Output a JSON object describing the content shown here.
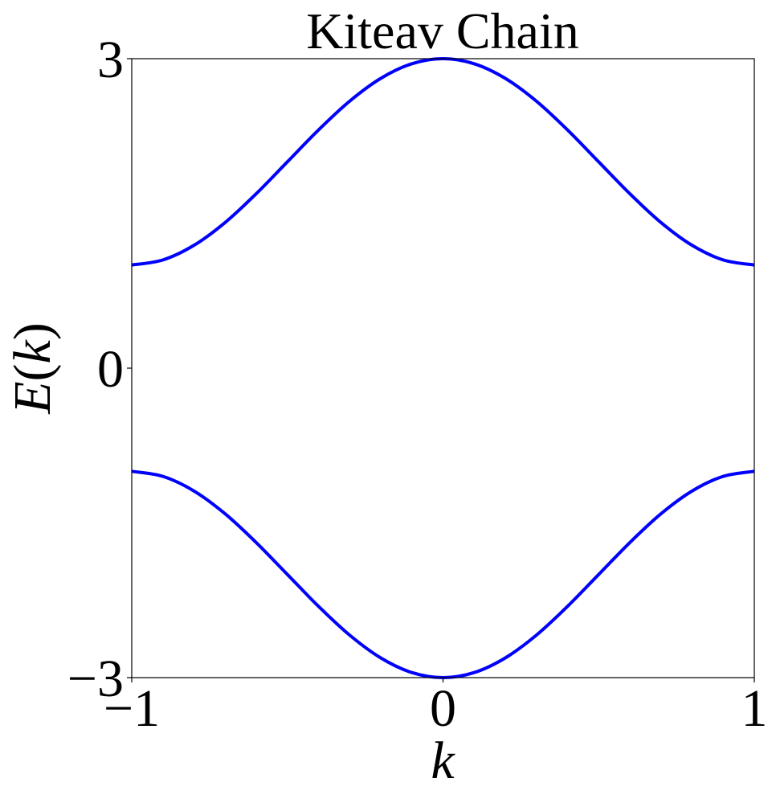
{
  "chart_data": {
    "type": "line",
    "title": "Kiteav Chain",
    "xlabel": "k",
    "ylabel": "E(k)",
    "xlim": [
      -1,
      1
    ],
    "ylim": [
      -3,
      3
    ],
    "xticks": [
      {
        "value": -1,
        "label": "−1"
      },
      {
        "value": 0,
        "label": "0"
      },
      {
        "value": 1,
        "label": "1"
      }
    ],
    "yticks": [
      {
        "value": -3,
        "label": "−3"
      },
      {
        "value": 0,
        "label": "0"
      },
      {
        "value": 3,
        "label": "3"
      }
    ],
    "grid": false,
    "series": [
      {
        "color": "#0000ff",
        "x": [
          -1.0,
          -0.9,
          -0.8,
          -0.7,
          -0.6,
          -0.5,
          -0.4,
          -0.3,
          -0.2,
          -0.1,
          0.0,
          0.1,
          0.2,
          0.3,
          0.4,
          0.5,
          0.6,
          0.7,
          0.8,
          0.9,
          1.0
        ],
        "y": [
          1.0,
          1.049,
          1.191,
          1.412,
          1.691,
          2.0,
          2.309,
          2.588,
          2.809,
          2.951,
          3.0,
          2.951,
          2.809,
          2.588,
          2.309,
          2.0,
          1.691,
          1.412,
          1.191,
          1.049,
          1.0
        ]
      },
      {
        "color": "#0000ff",
        "x": [
          -1.0,
          -0.9,
          -0.8,
          -0.7,
          -0.6,
          -0.5,
          -0.4,
          -0.3,
          -0.2,
          -0.1,
          0.0,
          0.1,
          0.2,
          0.3,
          0.4,
          0.5,
          0.6,
          0.7,
          0.8,
          0.9,
          1.0
        ],
        "y": [
          -1.0,
          -1.049,
          -1.191,
          -1.412,
          -1.691,
          -2.0,
          -2.309,
          -2.588,
          -2.809,
          -2.951,
          -3.0,
          -2.951,
          -2.809,
          -2.588,
          -2.309,
          -2.0,
          -1.691,
          -1.412,
          -1.191,
          -1.049,
          -1.0
        ]
      }
    ]
  }
}
